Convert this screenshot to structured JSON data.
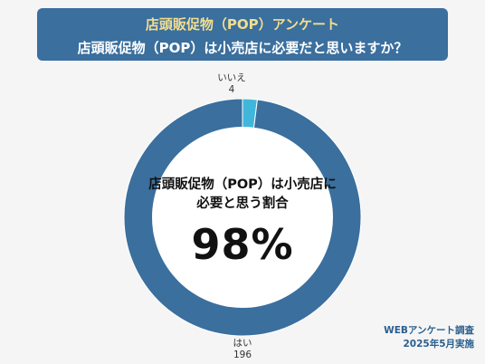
{
  "header": {
    "title": "店頭販促物（POP）アンケート",
    "question": "店頭販促物（POP）は小売店に必要だと思いますか？"
  },
  "chart_data": {
    "type": "pie",
    "categories": [
      "はい",
      "いいえ"
    ],
    "values": [
      196,
      4
    ],
    "colors": [
      "#3a6f9e",
      "#41b6db"
    ],
    "center_label": "店頭販促物（POP）は小売店に必要と思う割合",
    "center_value": "98%"
  },
  "center": {
    "line1": "店頭販促物（POP）は小売店に",
    "line2": "必要と思う割合",
    "percent": "98%"
  },
  "labels": {
    "yes_label": "はい",
    "yes_value": "196",
    "no_label": "いいえ",
    "no_value": "4"
  },
  "source": {
    "line1": "WEBアンケート調査",
    "line2": "2025年5月実施"
  }
}
